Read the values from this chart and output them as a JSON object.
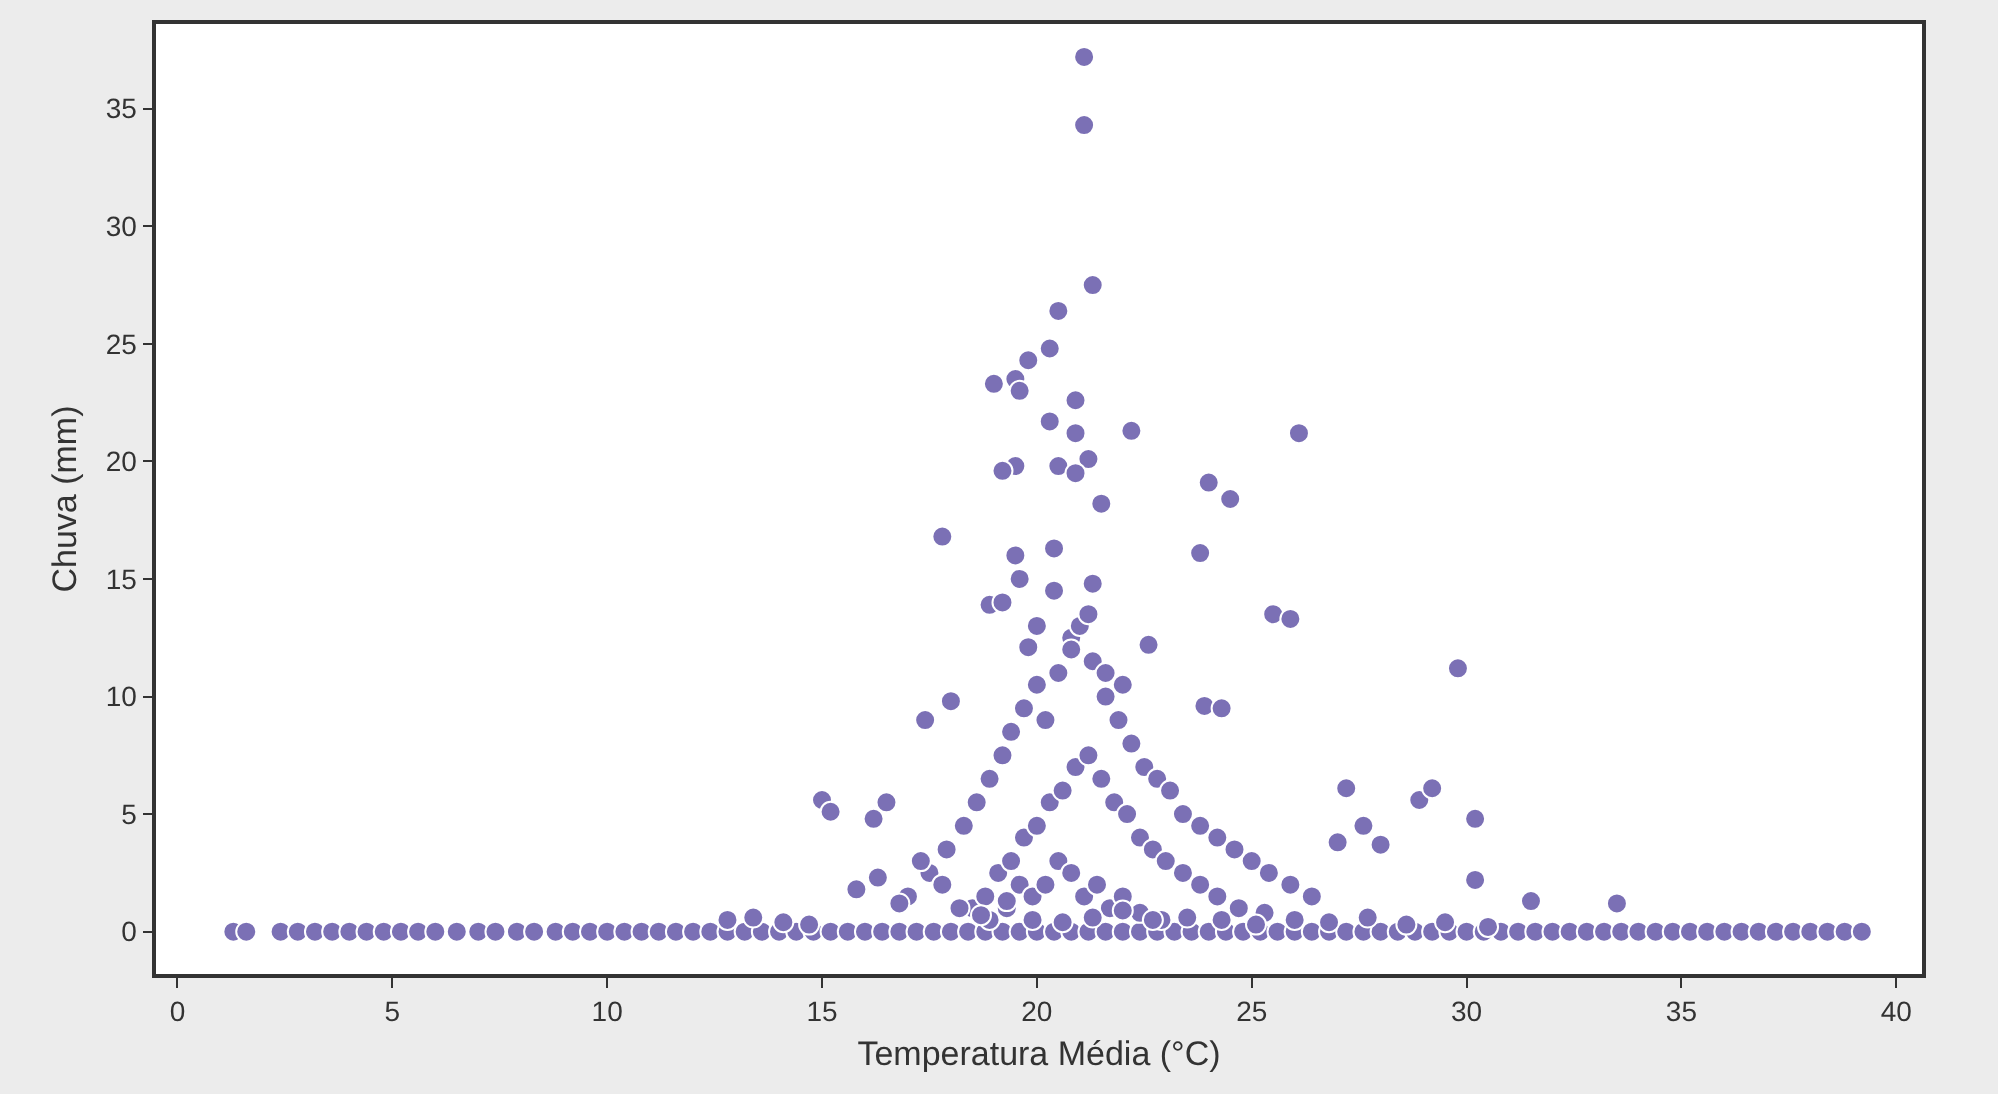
{
  "chart_data": {
    "type": "scatter",
    "xlabel": "Temperatura Média (°C)",
    "ylabel": "Chuva (mm)",
    "xlim": [
      -0.5,
      40.6
    ],
    "ylim": [
      -1.8,
      38.6
    ],
    "xticks": [
      0,
      5,
      10,
      15,
      20,
      25,
      30,
      35,
      40
    ],
    "yticks": [
      0,
      5,
      10,
      15,
      20,
      25,
      30,
      35
    ],
    "grid": false,
    "marker": "circle",
    "series": [
      {
        "color": "#7b70b5",
        "x": [
          1.3,
          1.6,
          2.4,
          2.8,
          3.2,
          3.6,
          4.0,
          4.4,
          4.8,
          5.2,
          5.6,
          6.0,
          6.5,
          7.0,
          7.4,
          7.9,
          8.3,
          8.8,
          9.2,
          9.6,
          10.0,
          10.4,
          10.8,
          11.2,
          11.6,
          12.0,
          12.4,
          12.8,
          13.2,
          13.6,
          14.0,
          14.4,
          14.8,
          15.2,
          15.6,
          16.0,
          16.4,
          16.8,
          17.2,
          17.6,
          18.0,
          18.4,
          18.8,
          19.2,
          19.6,
          20.0,
          20.4,
          20.8,
          21.2,
          21.6,
          22.0,
          22.4,
          22.8,
          23.2,
          23.6,
          24.0,
          24.4,
          24.8,
          25.2,
          25.6,
          26.0,
          26.4,
          26.8,
          27.2,
          27.6,
          28.0,
          28.4,
          28.8,
          29.2,
          29.6,
          30.0,
          30.4,
          30.8,
          31.2,
          31.6,
          32.0,
          32.4,
          32.8,
          33.2,
          33.6,
          34.0,
          34.4,
          34.8,
          35.2,
          35.6,
          36.0,
          36.4,
          36.8,
          37.2,
          37.6,
          38.0,
          38.4,
          38.8,
          39.2,
          21.1,
          21.1,
          21.3,
          20.5,
          20.3,
          19.8,
          19.5,
          19.0,
          19.6,
          20.9,
          20.9,
          22.2,
          26.1,
          20.3,
          20.5,
          19.5,
          19.2,
          21.2,
          20.9,
          24.0,
          24.5,
          21.5,
          17.8,
          23.8,
          19.5,
          20.4,
          18.9,
          21.3,
          25.5,
          25.9,
          22.6,
          19.8,
          29.8,
          17.4,
          18.0,
          23.9,
          24.3,
          15.0,
          15.2,
          16.2,
          16.5,
          27.2,
          27.6,
          28.9,
          29.2,
          30.2,
          30.2,
          31.5,
          33.5,
          27.0,
          28.0,
          17.0,
          17.5,
          17.9,
          18.3,
          18.6,
          18.9,
          19.2,
          19.4,
          19.7,
          20.0,
          20.2,
          20.5,
          20.8,
          21.0,
          21.3,
          21.6,
          21.9,
          22.2,
          22.5,
          22.8,
          23.1,
          23.4,
          23.8,
          24.2,
          24.6,
          25.0,
          25.4,
          25.9,
          26.4,
          18.5,
          18.8,
          19.1,
          19.4,
          19.7,
          20.0,
          20.3,
          20.6,
          20.9,
          21.2,
          21.5,
          21.8,
          22.1,
          22.4,
          22.7,
          23.0,
          23.4,
          23.8,
          24.2,
          24.7,
          25.3,
          18.9,
          19.3,
          19.6,
          19.9,
          20.2,
          20.5,
          20.8,
          21.1,
          21.4,
          21.7,
          22.0,
          22.4,
          22.9,
          19.2,
          19.6,
          20.0,
          20.4,
          20.8,
          21.2,
          21.6,
          22.0,
          15.8,
          16.3,
          16.8,
          17.3,
          17.8,
          18.2,
          18.7,
          19.3,
          19.9,
          20.6,
          21.3,
          22.0,
          22.7,
          23.5,
          24.3,
          25.1,
          26.0,
          26.8,
          27.7,
          28.6,
          29.5,
          30.5,
          12.8,
          13.4,
          14.1,
          14.7
        ],
        "values": [
          0,
          0,
          0,
          0,
          0,
          0,
          0,
          0,
          0,
          0,
          0,
          0,
          0,
          0,
          0,
          0,
          0,
          0,
          0,
          0,
          0,
          0,
          0,
          0,
          0,
          0,
          0,
          0,
          0,
          0,
          0,
          0,
          0,
          0,
          0,
          0,
          0,
          0,
          0,
          0,
          0,
          0,
          0,
          0,
          0,
          0,
          0,
          0,
          0,
          0,
          0,
          0,
          0,
          0,
          0,
          0,
          0,
          0,
          0,
          0,
          0,
          0,
          0,
          0,
          0,
          0,
          0,
          0,
          0,
          0,
          0,
          0,
          0,
          0,
          0,
          0,
          0,
          0,
          0,
          0,
          0,
          0,
          0,
          0,
          0,
          0,
          0,
          0,
          0,
          0,
          0,
          0,
          0,
          0,
          37.2,
          34.3,
          27.5,
          26.4,
          24.8,
          24.3,
          23.5,
          23.3,
          23.0,
          22.6,
          21.2,
          21.3,
          21.2,
          21.7,
          19.8,
          19.8,
          19.6,
          20.1,
          19.5,
          19.1,
          18.4,
          18.2,
          16.8,
          16.1,
          16.0,
          16.3,
          13.9,
          14.8,
          13.5,
          13.3,
          12.2,
          12.1,
          11.2,
          9.0,
          9.8,
          9.6,
          9.5,
          5.6,
          5.1,
          4.8,
          5.5,
          6.1,
          4.5,
          5.6,
          6.1,
          4.8,
          2.2,
          1.3,
          1.2,
          3.8,
          3.7,
          1.5,
          2.5,
          3.5,
          4.5,
          5.5,
          6.5,
          7.5,
          8.5,
          9.5,
          10.5,
          9.0,
          11.0,
          12.5,
          13.0,
          11.5,
          10.0,
          9.0,
          8.0,
          7.0,
          6.5,
          6.0,
          5.0,
          4.5,
          4.0,
          3.5,
          3.0,
          2.5,
          2.0,
          1.5,
          1.0,
          1.5,
          2.5,
          3.0,
          4.0,
          4.5,
          5.5,
          6.0,
          7.0,
          7.5,
          6.5,
          5.5,
          5.0,
          4.0,
          3.5,
          3.0,
          2.5,
          2.0,
          1.5,
          1.0,
          0.8,
          0.5,
          1.0,
          2.0,
          1.5,
          2.0,
          3.0,
          2.5,
          1.5,
          2.0,
          1.0,
          1.5,
          0.8,
          0.5,
          14.0,
          15.0,
          13.0,
          14.5,
          12.0,
          13.5,
          11.0,
          10.5,
          1.8,
          2.3,
          1.2,
          3.0,
          2.0,
          1.0,
          0.7,
          1.3,
          0.5,
          0.4,
          0.6,
          0.9,
          0.5,
          0.6,
          0.5,
          0.3,
          0.5,
          0.4,
          0.6,
          0.3,
          0.4,
          0.2,
          0.5,
          0.6,
          0.4,
          0.3
        ]
      }
    ]
  }
}
